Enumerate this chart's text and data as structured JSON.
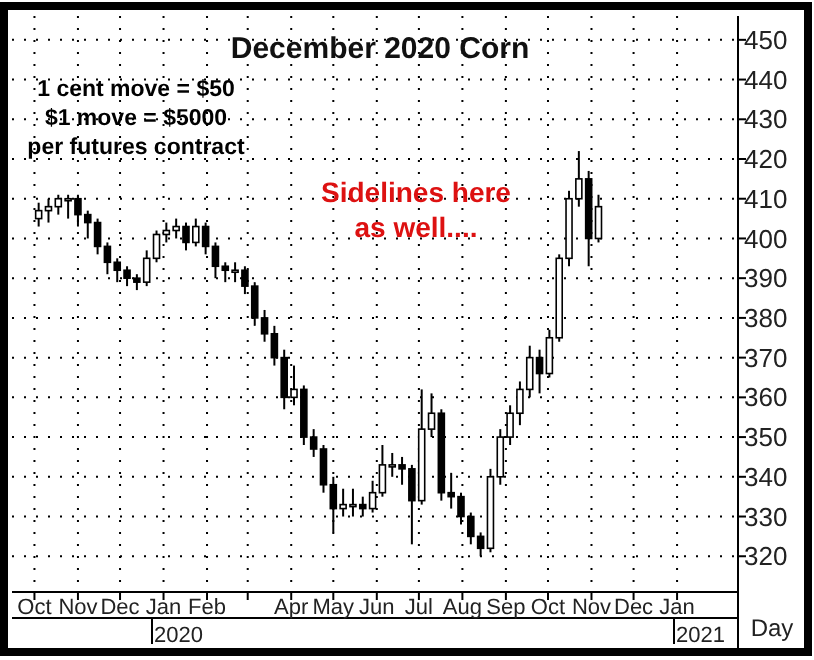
{
  "chart_data": {
    "type": "candlestick",
    "title": "December 2020 Corn",
    "xlabel": "Day",
    "annotations": [
      "1 cent move = $50\n$1 move = $5000\nper futures contract",
      "Sidelines here\nas well....",
      "2020",
      "2021"
    ],
    "x": [
      "2019-10-04",
      "2019-10-11",
      "2019-10-18",
      "2019-10-25",
      "2019-11-01",
      "2019-11-08",
      "2019-11-15",
      "2019-11-22",
      "2019-11-29",
      "2019-12-06",
      "2019-12-13",
      "2019-12-20",
      "2019-12-27",
      "2020-01-03",
      "2020-01-10",
      "2020-01-17",
      "2020-01-24",
      "2020-01-31",
      "2020-02-07",
      "2020-02-14",
      "2020-02-21",
      "2020-02-28",
      "2020-03-06",
      "2020-03-13",
      "2020-03-20",
      "2020-03-27",
      "2020-04-03",
      "2020-04-10",
      "2020-04-17",
      "2020-04-24",
      "2020-05-01",
      "2020-05-08",
      "2020-05-15",
      "2020-05-22",
      "2020-05-29",
      "2020-06-05",
      "2020-06-12",
      "2020-06-19",
      "2020-06-26",
      "2020-07-03",
      "2020-07-10",
      "2020-07-17",
      "2020-07-24",
      "2020-07-31",
      "2020-08-07",
      "2020-08-14",
      "2020-08-21",
      "2020-08-28",
      "2020-09-04",
      "2020-09-11",
      "2020-09-18",
      "2020-09-25",
      "2020-10-02",
      "2020-10-09",
      "2020-10-16",
      "2020-10-23",
      "2020-10-30",
      "2020-11-06"
    ],
    "ohlc": [
      [
        405,
        409,
        403,
        407
      ],
      [
        407,
        410,
        404,
        408
      ],
      [
        408,
        411,
        406,
        410
      ],
      [
        410,
        411,
        405,
        410
      ],
      [
        410,
        411,
        403,
        406
      ],
      [
        406,
        407,
        400,
        404
      ],
      [
        404,
        405,
        396,
        398
      ],
      [
        398,
        399,
        391,
        394
      ],
      [
        394,
        395,
        389,
        392
      ],
      [
        392,
        393,
        388,
        390
      ],
      [
        390,
        391,
        387,
        389
      ],
      [
        389,
        397,
        388,
        395
      ],
      [
        395,
        402,
        394,
        401
      ],
      [
        401,
        404,
        399,
        402
      ],
      [
        402,
        405,
        400,
        403
      ],
      [
        403,
        404,
        397,
        399
      ],
      [
        399,
        405,
        398,
        403
      ],
      [
        403,
        404,
        396,
        398
      ],
      [
        398,
        399,
        390,
        393
      ],
      [
        393,
        394,
        389,
        392
      ],
      [
        392,
        394,
        389,
        392
      ],
      [
        392,
        393,
        386,
        388
      ],
      [
        388,
        389,
        378,
        380
      ],
      [
        380,
        382,
        374,
        376
      ],
      [
        376,
        378,
        368,
        370
      ],
      [
        370,
        372,
        357,
        360
      ],
      [
        360,
        368,
        358,
        362
      ],
      [
        362,
        363,
        348,
        350
      ],
      [
        350,
        352,
        345,
        347
      ],
      [
        347,
        348,
        336,
        338
      ],
      [
        338,
        340,
        326,
        332
      ],
      [
        332,
        337,
        330,
        333
      ],
      [
        333,
        337,
        330,
        333
      ],
      [
        333,
        335,
        330,
        332
      ],
      [
        332,
        339,
        331,
        336
      ],
      [
        336,
        348,
        335,
        343
      ],
      [
        343,
        346,
        340,
        343
      ],
      [
        343,
        345,
        338,
        342
      ],
      [
        342,
        343,
        323,
        334
      ],
      [
        334,
        362,
        333,
        352
      ],
      [
        352,
        361,
        350,
        356
      ],
      [
        356,
        357,
        334,
        336
      ],
      [
        336,
        341,
        332,
        335
      ],
      [
        335,
        336,
        328,
        330
      ],
      [
        330,
        331,
        323,
        325
      ],
      [
        325,
        326,
        320,
        322
      ],
      [
        322,
        342,
        321,
        340
      ],
      [
        340,
        352,
        338,
        350
      ],
      [
        350,
        358,
        348,
        356
      ],
      [
        356,
        364,
        353,
        362
      ],
      [
        362,
        373,
        360,
        370
      ],
      [
        370,
        372,
        361,
        366
      ],
      [
        366,
        377,
        365,
        375
      ],
      [
        375,
        396,
        374,
        395
      ],
      [
        395,
        412,
        393,
        410
      ],
      [
        410,
        422,
        408,
        415
      ],
      [
        415,
        417,
        393,
        400
      ],
      [
        400,
        411,
        399,
        408
      ]
    ],
    "color": "#000000",
    "xlim": [
      "2019-09-15",
      "2021-02-12"
    ],
    "xticks": [
      {
        "value": "2019-10-01",
        "label": "Oct"
      },
      {
        "value": "2019-11-01",
        "label": "Nov"
      },
      {
        "value": "2019-12-01",
        "label": "Dec"
      },
      {
        "value": "2020-01-01",
        "label": "Jan"
      },
      {
        "value": "2020-02-01",
        "label": "Feb"
      },
      {
        "value": "2020-03-01",
        "label": null
      },
      {
        "value": "2020-04-01",
        "label": "Apr"
      },
      {
        "value": "2020-05-01",
        "label": "May"
      },
      {
        "value": "2020-06-01",
        "label": "Jun"
      },
      {
        "value": "2020-07-01",
        "label": "Jul"
      },
      {
        "value": "2020-08-01",
        "label": "Aug"
      },
      {
        "value": "2020-09-01",
        "label": "Sep"
      },
      {
        "value": "2020-10-01",
        "label": "Oct"
      },
      {
        "value": "2020-11-01",
        "label": "Nov"
      },
      {
        "value": "2020-12-01",
        "label": "Dec"
      },
      {
        "value": "2021-01-01",
        "label": "Jan"
      }
    ],
    "ylim": [
      311,
      456
    ],
    "yticks": [
      320,
      330,
      340,
      350,
      360,
      370,
      380,
      390,
      400,
      410,
      420,
      430,
      440,
      450
    ],
    "grid": true
  }
}
